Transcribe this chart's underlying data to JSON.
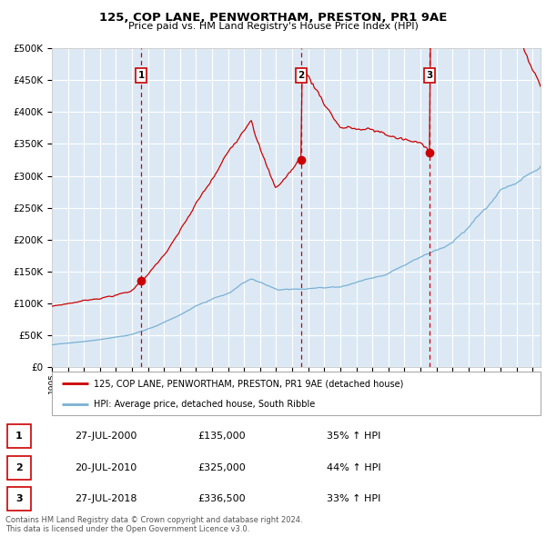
{
  "title": "125, COP LANE, PENWORTHAM, PRESTON, PR1 9AE",
  "subtitle": "Price paid vs. HM Land Registry's House Price Index (HPI)",
  "fig_facecolor": "#ffffff",
  "plot_bg_color": "#dce9f5",
  "red_line_color": "#cc0000",
  "blue_line_color": "#7ab0d4",
  "vline_color": "#cc0000",
  "grid_color": "#ffffff",
  "ylim": [
    0,
    500000
  ],
  "yticks": [
    0,
    50000,
    100000,
    150000,
    200000,
    250000,
    300000,
    350000,
    400000,
    450000,
    500000
  ],
  "sales": [
    {
      "date_num": 2000.57,
      "price": 135000,
      "label": "1"
    },
    {
      "date_num": 2010.55,
      "price": 325000,
      "label": "2"
    },
    {
      "date_num": 2018.57,
      "price": 336500,
      "label": "3"
    }
  ],
  "legend_line1": "125, COP LANE, PENWORTHAM, PRESTON, PR1 9AE (detached house)",
  "legend_line2": "HPI: Average price, detached house, South Ribble",
  "table_rows": [
    [
      "1",
      "27-JUL-2000",
      "£135,000",
      "35% ↑ HPI"
    ],
    [
      "2",
      "20-JUL-2010",
      "£325,000",
      "44% ↑ HPI"
    ],
    [
      "3",
      "27-JUL-2018",
      "£336,500",
      "33% ↑ HPI"
    ]
  ],
  "footer": "Contains HM Land Registry data © Crown copyright and database right 2024.\nThis data is licensed under the Open Government Licence v3.0.",
  "xmin": 1995.0,
  "xmax": 2025.5
}
